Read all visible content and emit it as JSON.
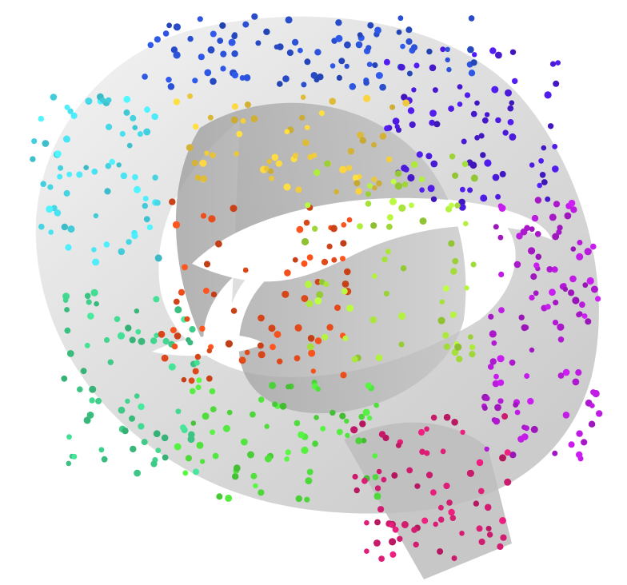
{
  "scene": {
    "subject": "swiss-roll-manifold",
    "surface_color": "#c8c8c8",
    "point_palette": [
      "#1a1aa8",
      "#2f6fd6",
      "#4fe6e6",
      "#3fce7a",
      "#4cd83a",
      "#9fe03a",
      "#e6e23a",
      "#f0a020",
      "#e0461c",
      "#d21c78",
      "#b31ad0",
      "#6a1ae0"
    ],
    "regions": [
      {
        "name": "outer-top",
        "color": "#2a4fd0",
        "count": 90
      },
      {
        "name": "outer-left",
        "color": "#46d8e6",
        "count": 70
      },
      {
        "name": "outer-bottom-left",
        "color": "#3fcf8a",
        "count": 70
      },
      {
        "name": "outer-bottom",
        "color": "#4fdc3c",
        "count": 70
      },
      {
        "name": "outer-right",
        "color": "#b41ad6",
        "count": 110
      },
      {
        "name": "outer-top-right",
        "color": "#4a1ad8",
        "count": 80
      },
      {
        "name": "inner-top",
        "color": "#e8c43a",
        "count": 60
      },
      {
        "name": "inner-center",
        "color": "#e24a1a",
        "count": 70
      },
      {
        "name": "inner-right",
        "color": "#a6e03a",
        "count": 70
      },
      {
        "name": "tail",
        "color": "#d21c70",
        "count": 70
      }
    ]
  }
}
